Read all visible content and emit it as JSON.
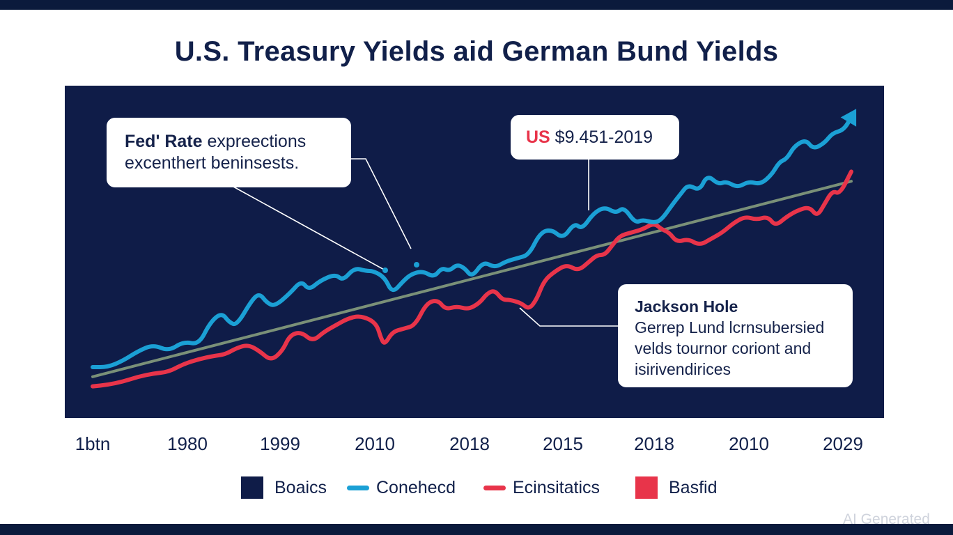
{
  "chart_data": {
    "type": "line",
    "title": "U.S. Treasury Yields aid German Bund Yields",
    "xlabel": "",
    "ylabel": "",
    "x_tick_labels": [
      "1btn",
      "1980",
      "1999",
      "2010",
      "2018",
      "2015",
      "2018",
      "2010",
      "2029"
    ],
    "ylim": [
      0,
      10
    ],
    "grid": false,
    "legend": {
      "position": "bottom",
      "entries": [
        {
          "label": "Boaics",
          "marker": "square",
          "color": "#0f1c48"
        },
        {
          "label": "Conehecd",
          "marker": "line",
          "color": "#1ba0d5"
        },
        {
          "label": "Ecinsitatics",
          "marker": "line",
          "color": "#e8344a"
        },
        {
          "label": "Basfid",
          "marker": "square",
          "color": "#e8344a"
        }
      ]
    },
    "series": [
      {
        "name": "Conehecd",
        "color": "#1ba0d5",
        "arrow_end": true,
        "points": [
          [
            0.0,
            1.5
          ],
          [
            0.02,
            1.5
          ],
          [
            0.04,
            1.7
          ],
          [
            0.06,
            2.0
          ],
          [
            0.08,
            2.2
          ],
          [
            0.1,
            2.0
          ],
          [
            0.12,
            2.3
          ],
          [
            0.14,
            2.2
          ],
          [
            0.155,
            2.9
          ],
          [
            0.17,
            3.2
          ],
          [
            0.18,
            2.9
          ],
          [
            0.19,
            2.8
          ],
          [
            0.21,
            3.6
          ],
          [
            0.22,
            3.8
          ],
          [
            0.23,
            3.5
          ],
          [
            0.24,
            3.4
          ],
          [
            0.26,
            3.8
          ],
          [
            0.275,
            4.2
          ],
          [
            0.285,
            3.9
          ],
          [
            0.3,
            4.2
          ],
          [
            0.32,
            4.4
          ],
          [
            0.33,
            4.2
          ],
          [
            0.345,
            4.6
          ],
          [
            0.36,
            4.5
          ],
          [
            0.37,
            4.5
          ],
          [
            0.385,
            4.3
          ],
          [
            0.395,
            3.8
          ],
          [
            0.41,
            4.2
          ],
          [
            0.42,
            4.4
          ],
          [
            0.435,
            4.5
          ],
          [
            0.45,
            4.3
          ],
          [
            0.46,
            4.6
          ],
          [
            0.47,
            4.5
          ],
          [
            0.48,
            4.7
          ],
          [
            0.49,
            4.6
          ],
          [
            0.5,
            4.3
          ],
          [
            0.515,
            4.8
          ],
          [
            0.53,
            4.6
          ],
          [
            0.545,
            4.8
          ],
          [
            0.56,
            4.9
          ],
          [
            0.575,
            5.0
          ],
          [
            0.59,
            5.7
          ],
          [
            0.605,
            5.8
          ],
          [
            0.62,
            5.5
          ],
          [
            0.635,
            6.0
          ],
          [
            0.645,
            5.8
          ],
          [
            0.66,
            6.3
          ],
          [
            0.675,
            6.5
          ],
          [
            0.69,
            6.3
          ],
          [
            0.7,
            6.5
          ],
          [
            0.715,
            6.0
          ],
          [
            0.725,
            6.1
          ],
          [
            0.74,
            6.0
          ],
          [
            0.75,
            6.1
          ],
          [
            0.765,
            6.6
          ],
          [
            0.775,
            6.9
          ],
          [
            0.785,
            7.2
          ],
          [
            0.8,
            7.0
          ],
          [
            0.81,
            7.5
          ],
          [
            0.825,
            7.2
          ],
          [
            0.835,
            7.3
          ],
          [
            0.85,
            7.1
          ],
          [
            0.865,
            7.3
          ],
          [
            0.88,
            7.2
          ],
          [
            0.895,
            7.5
          ],
          [
            0.905,
            7.9
          ],
          [
            0.915,
            8.0
          ],
          [
            0.925,
            8.4
          ],
          [
            0.94,
            8.6
          ],
          [
            0.95,
            8.3
          ],
          [
            0.965,
            8.5
          ],
          [
            0.975,
            8.8
          ],
          [
            0.99,
            8.9
          ],
          [
            1.0,
            9.3
          ]
        ]
      },
      {
        "name": "Ecinsitatics",
        "color": "#e8344a",
        "points": [
          [
            0.0,
            0.9
          ],
          [
            0.02,
            0.95
          ],
          [
            0.04,
            1.05
          ],
          [
            0.06,
            1.2
          ],
          [
            0.08,
            1.3
          ],
          [
            0.1,
            1.35
          ],
          [
            0.12,
            1.6
          ],
          [
            0.14,
            1.75
          ],
          [
            0.16,
            1.85
          ],
          [
            0.175,
            1.9
          ],
          [
            0.19,
            2.1
          ],
          [
            0.205,
            2.2
          ],
          [
            0.22,
            2.0
          ],
          [
            0.235,
            1.7
          ],
          [
            0.25,
            2.0
          ],
          [
            0.26,
            2.5
          ],
          [
            0.275,
            2.6
          ],
          [
            0.29,
            2.3
          ],
          [
            0.305,
            2.6
          ],
          [
            0.32,
            2.8
          ],
          [
            0.335,
            3.0
          ],
          [
            0.35,
            3.1
          ],
          [
            0.365,
            3.0
          ],
          [
            0.375,
            2.8
          ],
          [
            0.38,
            2.4
          ],
          [
            0.385,
            2.2
          ],
          [
            0.395,
            2.6
          ],
          [
            0.41,
            2.7
          ],
          [
            0.425,
            2.8
          ],
          [
            0.44,
            3.5
          ],
          [
            0.455,
            3.6
          ],
          [
            0.465,
            3.3
          ],
          [
            0.48,
            3.4
          ],
          [
            0.495,
            3.3
          ],
          [
            0.51,
            3.5
          ],
          [
            0.52,
            3.8
          ],
          [
            0.53,
            3.9
          ],
          [
            0.54,
            3.6
          ],
          [
            0.55,
            3.6
          ],
          [
            0.565,
            3.5
          ],
          [
            0.575,
            3.3
          ],
          [
            0.585,
            3.6
          ],
          [
            0.595,
            4.2
          ],
          [
            0.61,
            4.5
          ],
          [
            0.625,
            4.7
          ],
          [
            0.64,
            4.5
          ],
          [
            0.655,
            4.8
          ],
          [
            0.665,
            5.0
          ],
          [
            0.675,
            5.0
          ],
          [
            0.685,
            5.3
          ],
          [
            0.695,
            5.6
          ],
          [
            0.71,
            5.7
          ],
          [
            0.725,
            5.8
          ],
          [
            0.74,
            6.0
          ],
          [
            0.75,
            5.8
          ],
          [
            0.76,
            5.7
          ],
          [
            0.77,
            5.4
          ],
          [
            0.785,
            5.5
          ],
          [
            0.8,
            5.3
          ],
          [
            0.815,
            5.5
          ],
          [
            0.83,
            5.7
          ],
          [
            0.845,
            6.0
          ],
          [
            0.86,
            6.2
          ],
          [
            0.875,
            6.1
          ],
          [
            0.89,
            6.2
          ],
          [
            0.9,
            5.9
          ],
          [
            0.915,
            6.2
          ],
          [
            0.93,
            6.4
          ],
          [
            0.945,
            6.5
          ],
          [
            0.955,
            6.2
          ],
          [
            0.965,
            6.6
          ],
          [
            0.975,
            7.0
          ],
          [
            0.985,
            6.9
          ],
          [
            1.0,
            7.6
          ]
        ]
      },
      {
        "name": "Trend",
        "color": "#7a9078",
        "points": [
          [
            0.0,
            1.2
          ],
          [
            1.0,
            7.3
          ]
        ]
      }
    ],
    "annotations": [
      {
        "title": "Fed' Rate",
        "text_rest": " expreections",
        "line2": "excenthert beninsests."
      },
      {
        "prefix": "US",
        "text": " $9.451-2019"
      },
      {
        "title": "Jackson Hole",
        "lines": [
          "Gerrep Lund lcrnsubersied",
          "velds tournor coriont and",
          "isirivendirices"
        ]
      }
    ]
  },
  "watermark": "AI Generated"
}
